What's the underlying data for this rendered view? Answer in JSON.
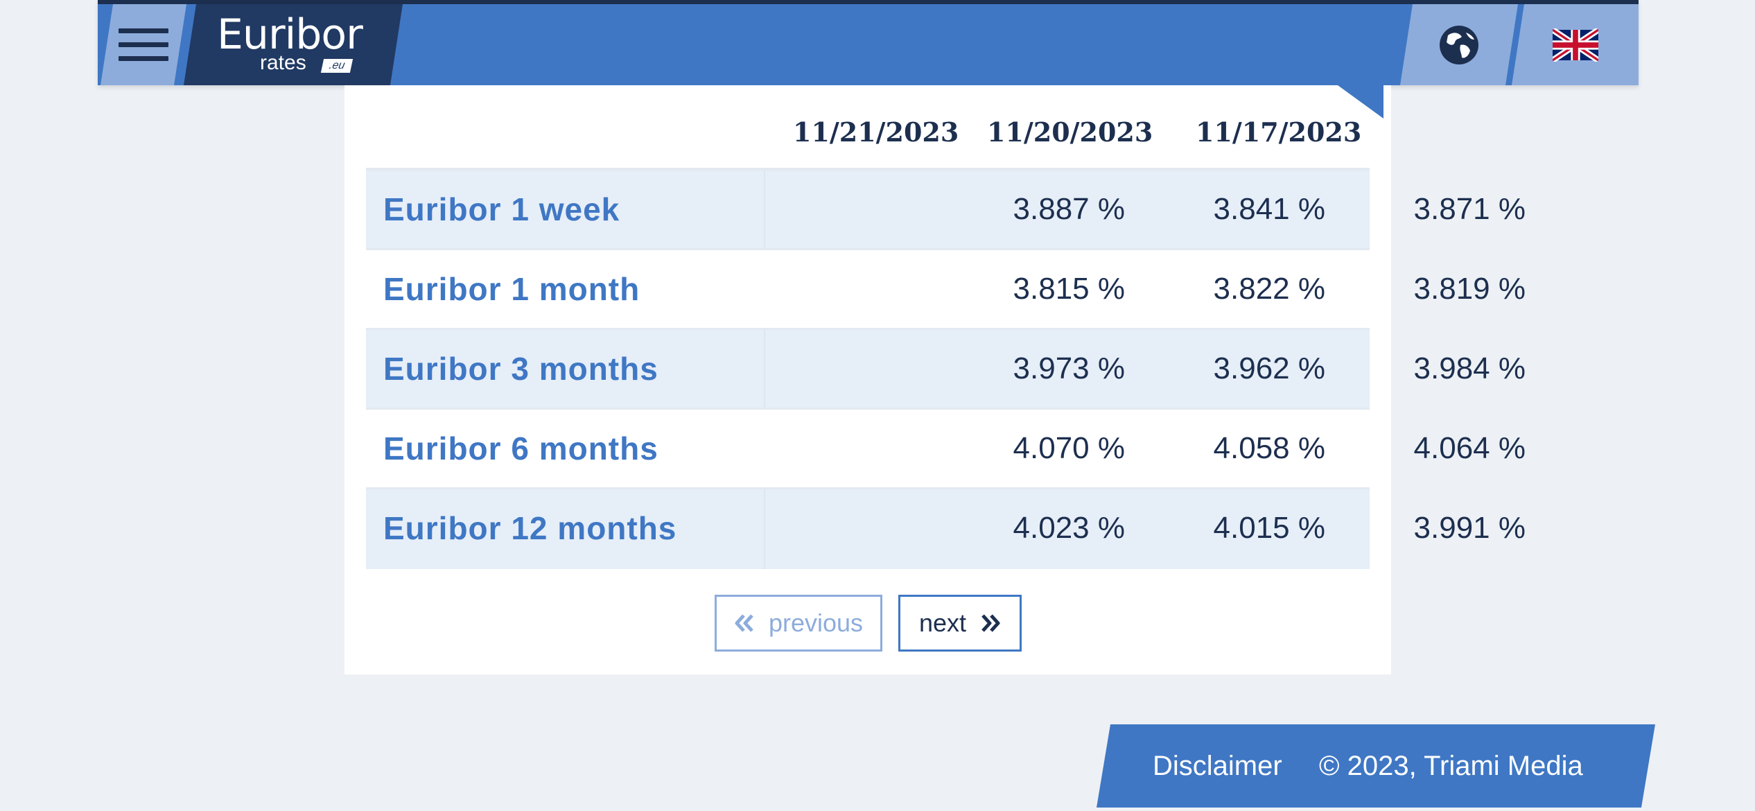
{
  "header": {
    "logo": {
      "main": "Euribor",
      "sub": "rates",
      "tld": ".eu"
    },
    "menu_icon": "hamburger-menu-icon",
    "globe_icon": "globe-icon",
    "language_icon": "uk-flag-icon"
  },
  "table": {
    "dates": [
      "11/21/2023",
      "11/20/2023",
      "11/17/2023"
    ],
    "rows": [
      {
        "label": "Euribor 1 week",
        "values": [
          "3.887 %",
          "3.841 %",
          "3.871 %"
        ]
      },
      {
        "label": "Euribor 1 month",
        "values": [
          "3.815 %",
          "3.822 %",
          "3.819 %"
        ]
      },
      {
        "label": "Euribor 3 months",
        "values": [
          "3.973 %",
          "3.962 %",
          "3.984 %"
        ]
      },
      {
        "label": "Euribor 6 months",
        "values": [
          "4.070 %",
          "4.058 %",
          "4.064 %"
        ]
      },
      {
        "label": "Euribor 12 months",
        "values": [
          "4.023 %",
          "4.015 %",
          "3.991 %"
        ]
      }
    ]
  },
  "pager": {
    "previous_label": "previous",
    "next_label": "next",
    "previous_icon": "double-chevron-left-icon",
    "next_icon": "double-chevron-right-icon"
  },
  "footer": {
    "disclaimer": "Disclaimer",
    "copyright": "© 2023, Triami Media"
  },
  "colors": {
    "brand_blue": "#3f77c4",
    "navy": "#1d2f4f",
    "light_blue": "#8dacdc",
    "row_shade": "#e6eef8",
    "background": "#edf1f5"
  }
}
